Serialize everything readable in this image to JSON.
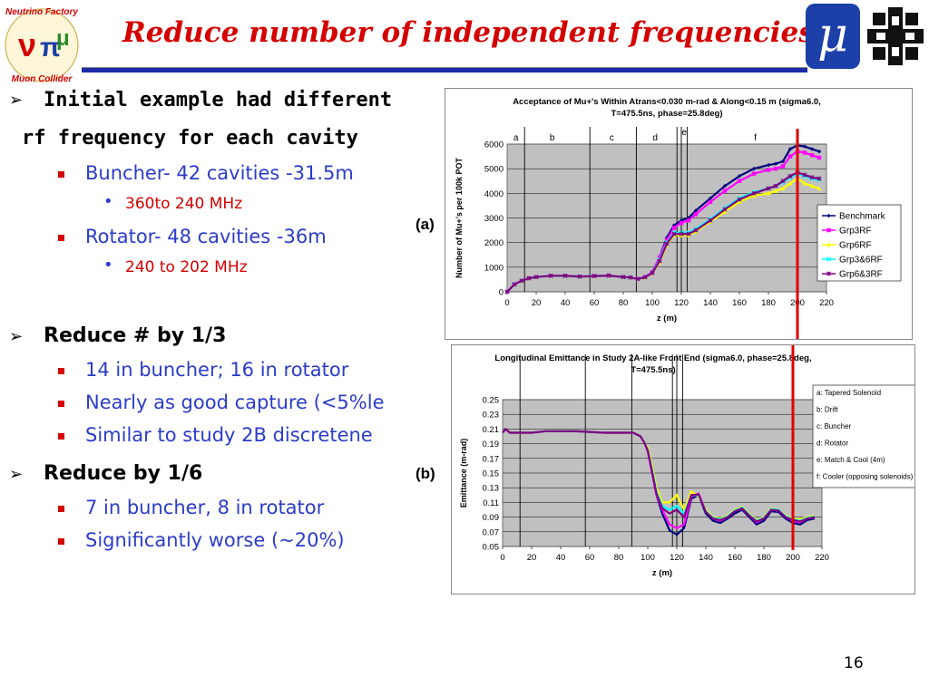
{
  "slide": {
    "title": "Reduce number of independent frequencies",
    "page_number": "16",
    "logo_mu_symbol": "μ",
    "logo_nf_text_top": "Neutrino Factory",
    "logo_nf_text_bottom": "Muon Collider"
  },
  "bullets": {
    "b1_line1": "Initial example had different",
    "b1_line2": "rf frequency for each cavity",
    "b1_s1": "Buncher- 42 cavities -31.5m",
    "b1_s1_sub": "360to 240 MHz",
    "b1_s2": "Rotator- 48 cavities -36m",
    "b1_s2_sub": "240 to 202 MHz",
    "b2": "Reduce # by 1/3",
    "b2_s1": "14 in buncher; 16 in rotator",
    "b2_s2": "Nearly as good capture (<5%le",
    "b2_s3": "Similar to study 2B discretene",
    "b3": "Reduce by 1/6",
    "b3_s1": "7 in buncher, 8 in rotator",
    "b3_s2": "Significantly worse (~20%)"
  },
  "panel_labels": {
    "a": "(a)",
    "b": "(b)"
  },
  "colors": {
    "title": "#d40000",
    "sub": "#2b3cc8",
    "subsub": "#d40000",
    "rule": "#1a2aa8",
    "red_line": "#e00000",
    "plot_bg": "#c0c0c0"
  },
  "chart_data": [
    {
      "type": "line",
      "title": "Acceptance of Mu+'s Within Atrans<0.030 m-rad & Along<0.15 m (sigma6.0,",
      "title2": "T=475.5ns, phase=25.8deg)",
      "xlabel": "z (m)",
      "ylabel": "Number of Mu+'s per 100k POT",
      "xlim": [
        0,
        220
      ],
      "ylim": [
        0,
        6000
      ],
      "xticks": [
        "0",
        "20",
        "40",
        "60",
        "80",
        "100",
        "120",
        "140",
        "160",
        "180",
        "200",
        "220"
      ],
      "yticks": [
        "0",
        "1000",
        "2000",
        "3000",
        "4000",
        "5000",
        "6000"
      ],
      "regions": [
        {
          "label": "a",
          "x": 6
        },
        {
          "label": "b",
          "x": 31
        },
        {
          "label": "c",
          "x": 72
        },
        {
          "label": "d",
          "x": 102
        },
        {
          "label": "e",
          "x": 122
        },
        {
          "label": "f",
          "x": 171
        }
      ],
      "region_bounds": [
        12,
        57,
        89,
        117,
        120,
        124
      ],
      "marker_line_x": 200,
      "legend_position": "right",
      "x": [
        0,
        5,
        10,
        15,
        20,
        30,
        40,
        50,
        60,
        70,
        80,
        85,
        90,
        95,
        100,
        105,
        110,
        115,
        120,
        125,
        130,
        140,
        150,
        160,
        170,
        180,
        185,
        190,
        195,
        200,
        205,
        210,
        215
      ],
      "series": [
        {
          "name": "Benchmark",
          "color": "#000080",
          "marker": "diamond",
          "values": [
            0,
            300,
            450,
            550,
            600,
            650,
            650,
            620,
            640,
            660,
            600,
            580,
            520,
            600,
            800,
            1400,
            2200,
            2700,
            2900,
            3000,
            3300,
            3800,
            4300,
            4700,
            5000,
            5150,
            5200,
            5300,
            5800,
            5950,
            5900,
            5800,
            5700
          ]
        },
        {
          "name": "Grp3RF",
          "color": "#ff00ff",
          "marker": "square",
          "values": [
            0,
            300,
            450,
            550,
            600,
            650,
            650,
            620,
            640,
            660,
            600,
            580,
            520,
            600,
            800,
            1400,
            2100,
            2600,
            2800,
            2900,
            3150,
            3650,
            4100,
            4500,
            4800,
            4950,
            5000,
            5100,
            5500,
            5700,
            5650,
            5550,
            5450
          ]
        },
        {
          "name": "Grp6RF",
          "color": "#ffff00",
          "marker": "triangle",
          "values": [
            0,
            300,
            450,
            550,
            600,
            650,
            650,
            620,
            640,
            660,
            600,
            580,
            520,
            580,
            750,
            1200,
            1900,
            2300,
            2300,
            2300,
            2450,
            2850,
            3250,
            3650,
            3900,
            4000,
            4100,
            4200,
            4400,
            4600,
            4400,
            4300,
            4200
          ]
        },
        {
          "name": "Grp3&6RF",
          "color": "#00ffff",
          "marker": "x",
          "values": [
            0,
            300,
            450,
            550,
            600,
            650,
            650,
            620,
            640,
            660,
            600,
            580,
            520,
            590,
            770,
            1300,
            2000,
            2400,
            2400,
            2400,
            2550,
            2950,
            3400,
            3800,
            4050,
            4200,
            4300,
            4450,
            4650,
            4800,
            4700,
            4600,
            4550
          ]
        },
        {
          "name": "Grp6&3RF",
          "color": "#800080",
          "marker": "star",
          "values": [
            0,
            300,
            450,
            550,
            600,
            650,
            650,
            620,
            640,
            660,
            600,
            580,
            520,
            590,
            760,
            1250,
            1950,
            2350,
            2350,
            2350,
            2500,
            2900,
            3350,
            3750,
            4000,
            4200,
            4300,
            4500,
            4700,
            4850,
            4750,
            4650,
            4600
          ]
        }
      ]
    },
    {
      "type": "line",
      "title": "Longitudinal Emittance in Study 2A-like Front End (sigma6.0, phase=25.8deg,",
      "title2": "T=475.5ns)",
      "xlabel": "z (m)",
      "ylabel": "Emittance (m-rad)",
      "xlim": [
        0,
        220
      ],
      "ylim": [
        0.05,
        0.25
      ],
      "xticks": [
        "0",
        "20",
        "40",
        "60",
        "80",
        "100",
        "120",
        "140",
        "160",
        "180",
        "200",
        "220"
      ],
      "yticks": [
        "0.05",
        "0.07",
        "0.09",
        "0.11",
        "0.13",
        "0.15",
        "0.17",
        "0.19",
        "0.21",
        "0.23",
        "0.25"
      ],
      "region_bounds": [
        12,
        57,
        89,
        117,
        120,
        124
      ],
      "marker_line_x": 200,
      "legend_position": "top-right",
      "legend_entries": [
        "a: Tapered Solenoid",
        "b: Drift",
        "c: Buncher",
        "d: Rotator",
        "e: Match & Cool (4m)",
        "f: Cooler (opposing solenoids)"
      ],
      "x": [
        0,
        2,
        5,
        10,
        20,
        30,
        40,
        50,
        60,
        70,
        80,
        90,
        95,
        98,
        100,
        103,
        106,
        110,
        115,
        120,
        125,
        130,
        135,
        140,
        145,
        150,
        155,
        160,
        165,
        170,
        175,
        180,
        185,
        190,
        195,
        200,
        205,
        210,
        215
      ],
      "series": [
        {
          "name": "Benchmark",
          "color": "#000080",
          "values": [
            0.205,
            0.21,
            0.205,
            0.205,
            0.205,
            0.207,
            0.207,
            0.207,
            0.206,
            0.205,
            0.205,
            0.205,
            0.2,
            0.19,
            0.18,
            0.15,
            0.12,
            0.095,
            0.072,
            0.066,
            0.075,
            0.115,
            0.12,
            0.095,
            0.085,
            0.082,
            0.088,
            0.095,
            0.1,
            0.09,
            0.08,
            0.085,
            0.098,
            0.097,
            0.088,
            0.082,
            0.08,
            0.086,
            0.088
          ]
        },
        {
          "name": "Grp3RF",
          "color": "#ff00ff",
          "values": [
            0.205,
            0.21,
            0.205,
            0.205,
            0.205,
            0.207,
            0.207,
            0.207,
            0.206,
            0.205,
            0.205,
            0.205,
            0.2,
            0.19,
            0.18,
            0.15,
            0.12,
            0.1,
            0.08,
            0.075,
            0.08,
            0.118,
            0.122,
            0.098,
            0.088,
            0.085,
            0.09,
            0.098,
            0.102,
            0.092,
            0.083,
            0.088,
            0.1,
            0.099,
            0.09,
            0.085,
            0.083,
            0.088,
            0.09
          ]
        },
        {
          "name": "Grp6RF",
          "color": "#ffff00",
          "values": [
            0.205,
            0.21,
            0.205,
            0.205,
            0.205,
            0.207,
            0.207,
            0.207,
            0.206,
            0.205,
            0.205,
            0.205,
            0.2,
            0.19,
            0.185,
            0.16,
            0.13,
            0.11,
            0.11,
            0.12,
            0.1,
            0.125,
            0.118,
            0.1,
            0.09,
            0.088,
            0.092,
            0.1,
            0.104,
            0.094,
            0.086,
            0.09,
            0.102,
            0.1,
            0.092,
            0.088,
            0.087,
            0.09,
            0.092
          ]
        },
        {
          "name": "Grp3&6RF",
          "color": "#00ffff",
          "values": [
            0.205,
            0.21,
            0.205,
            0.205,
            0.205,
            0.207,
            0.207,
            0.207,
            0.206,
            0.205,
            0.205,
            0.205,
            0.2,
            0.19,
            0.182,
            0.155,
            0.125,
            0.105,
            0.1,
            0.105,
            0.095,
            0.12,
            0.12,
            0.098,
            0.089,
            0.087,
            0.091,
            0.099,
            0.103,
            0.093,
            0.085,
            0.089,
            0.101,
            0.1,
            0.091,
            0.087,
            0.085,
            0.089,
            0.091
          ]
        },
        {
          "name": "Grp6&3RF",
          "color": "#800080",
          "values": [
            0.205,
            0.21,
            0.205,
            0.205,
            0.205,
            0.207,
            0.207,
            0.207,
            0.206,
            0.205,
            0.205,
            0.205,
            0.2,
            0.19,
            0.181,
            0.152,
            0.122,
            0.102,
            0.095,
            0.1,
            0.09,
            0.12,
            0.121,
            0.097,
            0.088,
            0.086,
            0.09,
            0.098,
            0.102,
            0.092,
            0.084,
            0.088,
            0.1,
            0.099,
            0.09,
            0.086,
            0.084,
            0.088,
            0.09
          ]
        }
      ]
    }
  ]
}
